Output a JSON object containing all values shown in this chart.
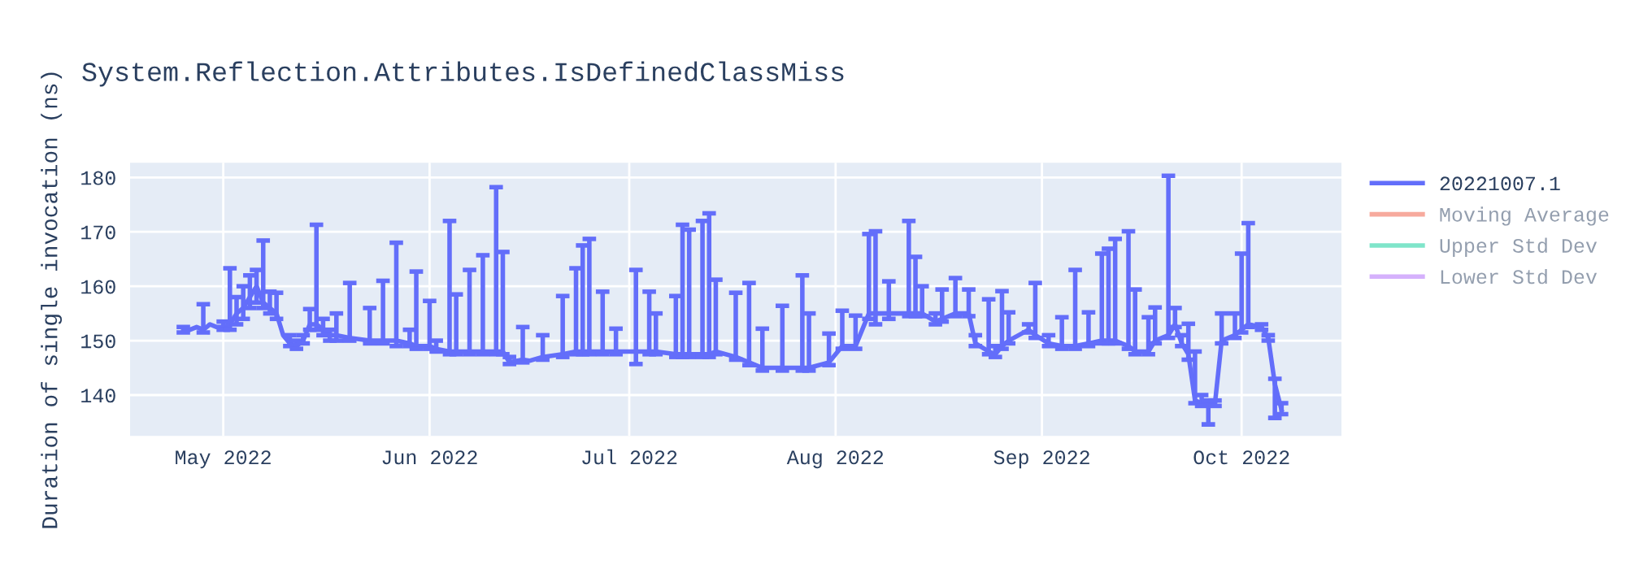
{
  "chart_data": {
    "type": "line",
    "title": "System.Reflection.Attributes.IsDefinedClassMiss",
    "ylabel": "Duration of single invocation (ns)",
    "x": [
      "2022-04-25",
      "2022-04-26",
      "2022-04-27",
      "2022-04-28",
      "2022-04-29",
      "2022-04-30",
      "2022-05-01",
      "2022-05-02",
      "2022-05-03",
      "2022-05-04",
      "2022-05-05",
      "2022-05-06",
      "2022-05-07",
      "2022-05-08",
      "2022-05-09",
      "2022-05-10",
      "2022-05-11",
      "2022-05-12",
      "2022-05-13",
      "2022-05-14",
      "2022-05-15",
      "2022-05-16",
      "2022-05-17",
      "2022-05-18",
      "2022-05-20",
      "2022-05-23",
      "2022-05-25",
      "2022-05-27",
      "2022-05-29",
      "2022-05-30",
      "2022-06-01",
      "2022-06-02",
      "2022-06-04",
      "2022-06-05",
      "2022-06-07",
      "2022-06-09",
      "2022-06-11",
      "2022-06-12",
      "2022-06-13",
      "2022-06-15",
      "2022-06-16",
      "2022-06-18",
      "2022-06-21",
      "2022-06-23",
      "2022-06-24",
      "2022-06-25",
      "2022-06-27",
      "2022-06-29",
      "2022-07-02",
      "2022-07-04",
      "2022-07-05",
      "2022-07-08",
      "2022-07-09",
      "2022-07-10",
      "2022-07-12",
      "2022-07-13",
      "2022-07-14",
      "2022-07-17",
      "2022-07-19",
      "2022-07-21",
      "2022-07-24",
      "2022-07-27",
      "2022-07-28",
      "2022-07-31",
      "2022-08-02",
      "2022-08-04",
      "2022-08-06",
      "2022-08-07",
      "2022-08-09",
      "2022-08-12",
      "2022-08-13",
      "2022-08-14",
      "2022-08-16",
      "2022-08-17",
      "2022-08-19",
      "2022-08-21",
      "2022-08-22",
      "2022-08-24",
      "2022-08-25",
      "2022-08-26",
      "2022-08-27",
      "2022-08-30",
      "2022-08-31",
      "2022-09-02",
      "2022-09-04",
      "2022-09-06",
      "2022-09-08",
      "2022-09-10",
      "2022-09-11",
      "2022-09-12",
      "2022-09-14",
      "2022-09-15",
      "2022-09-17",
      "2022-09-18",
      "2022-09-20",
      "2022-09-21",
      "2022-09-22",
      "2022-09-23",
      "2022-09-24",
      "2022-09-25",
      "2022-09-26",
      "2022-09-27",
      "2022-09-28",
      "2022-09-30",
      "2022-10-01",
      "2022-10-02",
      "2022-10-04",
      "2022-10-05",
      "2022-10-06",
      "2022-10-07"
    ],
    "series": [
      {
        "name": "20221007.1",
        "color": "#636efa",
        "values": [
          152,
          152,
          152.5,
          152,
          153,
          152.5,
          152.5,
          153,
          155,
          156,
          158,
          160,
          157,
          156,
          155,
          151,
          149.5,
          149,
          150,
          153,
          153,
          152,
          151,
          151,
          150.5,
          150,
          150,
          150,
          149.5,
          149,
          149,
          148.5,
          148,
          148,
          148,
          148,
          148,
          148,
          146,
          146.5,
          146.3,
          147,
          147.5,
          148,
          148,
          148,
          148,
          148,
          148,
          148,
          148,
          147.5,
          147.5,
          147.5,
          147.5,
          147.5,
          148,
          147,
          146,
          145,
          145,
          145,
          145,
          146,
          149,
          149,
          155,
          155,
          155,
          155,
          155,
          155,
          153.5,
          154,
          155,
          155,
          149.5,
          148,
          147.5,
          149,
          150,
          152,
          151,
          149.5,
          149,
          149,
          149.5,
          150,
          150,
          150,
          149,
          148,
          148,
          150,
          151,
          153,
          149.5,
          147.5,
          139,
          138.5,
          138.5,
          138.5,
          150,
          151,
          152,
          153,
          152.5,
          150.5,
          142,
          137.3
        ],
        "errors": [
          [
            151.5,
            152.5
          ],
          null,
          null,
          [
            151.5,
            156.7
          ],
          null,
          null,
          [
            152,
            153.5
          ],
          [
            152,
            163.3
          ],
          [
            153,
            158
          ],
          [
            154,
            160
          ],
          [
            156,
            162
          ],
          [
            157,
            163
          ],
          [
            156,
            168.4
          ],
          [
            155,
            159
          ],
          [
            154,
            158.8
          ],
          null,
          [
            149,
            151
          ],
          [
            148.5,
            150
          ],
          [
            149.5,
            151
          ],
          [
            152,
            155.8
          ],
          [
            152,
            171.3
          ],
          [
            151,
            154
          ],
          [
            150,
            152
          ],
          [
            150,
            155
          ],
          [
            150,
            160.6
          ],
          [
            149.5,
            156
          ],
          [
            149.5,
            161
          ],
          [
            149,
            168
          ],
          [
            149,
            152
          ],
          [
            148.5,
            162.7
          ],
          [
            148.5,
            157.3
          ],
          [
            148,
            150
          ],
          [
            147.5,
            172
          ],
          [
            147.5,
            158.5
          ],
          [
            147.5,
            163
          ],
          [
            147.5,
            165.7
          ],
          [
            147.5,
            178.2
          ],
          [
            147.5,
            166.3
          ],
          [
            145.7,
            147
          ],
          [
            146,
            152.5
          ],
          null,
          [
            146.5,
            151
          ],
          [
            147,
            158.2
          ],
          [
            147.5,
            163.3
          ],
          [
            147.5,
            167.5
          ],
          [
            147.5,
            168.7
          ],
          [
            147.5,
            159
          ],
          [
            147.5,
            152.2
          ],
          [
            145.7,
            163
          ],
          [
            147.5,
            159
          ],
          [
            147.5,
            155
          ],
          [
            147,
            158.2
          ],
          [
            147,
            171.3
          ],
          [
            147,
            170.4
          ],
          [
            147,
            172
          ],
          [
            147,
            173.4
          ],
          [
            147.5,
            161.2
          ],
          [
            146.5,
            158.8
          ],
          [
            145.5,
            160.6
          ],
          [
            144.5,
            152.2
          ],
          [
            144.5,
            156.4
          ],
          [
            144.5,
            162
          ],
          [
            144.5,
            155
          ],
          [
            145.5,
            151.3
          ],
          [
            148.5,
            155.5
          ],
          [
            148.5,
            154.6
          ],
          [
            154,
            169.6
          ],
          [
            153,
            170.1
          ],
          [
            154,
            160.9
          ],
          [
            154.5,
            172
          ],
          [
            154.5,
            165.4
          ],
          [
            154.5,
            160
          ],
          [
            153,
            155
          ],
          [
            153.5,
            159.4
          ],
          [
            154.5,
            161.5
          ],
          [
            154.5,
            159.4
          ],
          [
            149,
            151
          ],
          [
            147.5,
            157.6
          ],
          [
            147,
            149
          ],
          [
            148.5,
            159.1
          ],
          [
            149.5,
            155.2
          ],
          [
            151.5,
            153
          ],
          [
            150.5,
            160.6
          ],
          [
            149,
            151
          ],
          [
            148.5,
            154.3
          ],
          [
            148.5,
            163
          ],
          [
            149,
            155.2
          ],
          [
            149.5,
            166
          ],
          [
            149.5,
            166.9
          ],
          [
            149.5,
            168.7
          ],
          [
            148.5,
            170.1
          ],
          [
            147.5,
            159.4
          ],
          [
            147.5,
            154.3
          ],
          [
            149.5,
            156.1
          ],
          [
            150.5,
            180.3
          ],
          [
            152.5,
            156
          ],
          [
            149,
            151
          ],
          [
            146.5,
            153.1
          ],
          [
            138.5,
            148
          ],
          [
            138,
            140
          ],
          [
            134.6,
            139
          ],
          [
            138,
            139
          ],
          [
            149.5,
            155
          ],
          [
            150.5,
            155
          ],
          [
            151.5,
            166
          ],
          [
            152.5,
            171.6
          ],
          [
            152,
            153
          ],
          [
            150,
            151
          ],
          [
            135.8,
            143
          ],
          [
            136.5,
            138.5
          ]
        ]
      },
      {
        "name": "Moving Average",
        "color": "#ef553b",
        "values": [
          null,
          null,
          null,
          null,
          null,
          null,
          null,
          null,
          null,
          null,
          null,
          null,
          null,
          null,
          null,
          null,
          null,
          null,
          null,
          null,
          null,
          null,
          null,
          null,
          null,
          null,
          null,
          null,
          null,
          null,
          null,
          null,
          null,
          null,
          null,
          null,
          null,
          null,
          null,
          null,
          null,
          null,
          null,
          null,
          null,
          null,
          null,
          null,
          null,
          null,
          null,
          null,
          null,
          null,
          null,
          null,
          null,
          null,
          null,
          null,
          null,
          null,
          null,
          null,
          null,
          null,
          null,
          null,
          null,
          null,
          null,
          null,
          null,
          null,
          null,
          null,
          null,
          null,
          null,
          null,
          null,
          null,
          null,
          null,
          null,
          null,
          null,
          null,
          null,
          null,
          null,
          null,
          null,
          null,
          null,
          null,
          null,
          null,
          null,
          null,
          null,
          null,
          null,
          null,
          null,
          null,
          null,
          null,
          null,
          null
        ]
      },
      {
        "name": "Upper Std Dev",
        "color": "#00cc96",
        "values": [
          null,
          null,
          null,
          null,
          null,
          null,
          null,
          null,
          null,
          null,
          null,
          null,
          null,
          null,
          null,
          null,
          null,
          null,
          null,
          null,
          null,
          null,
          null,
          null,
          null,
          null,
          null,
          null,
          null,
          null,
          null,
          null,
          null,
          null,
          null,
          null,
          null,
          null,
          null,
          null,
          null,
          null,
          null,
          null,
          null,
          null,
          null,
          null,
          null,
          null,
          null,
          null,
          null,
          null,
          null,
          null,
          null,
          null,
          null,
          null,
          null,
          null,
          null,
          null,
          null,
          null,
          null,
          null,
          null,
          null,
          null,
          null,
          null,
          null,
          null,
          null,
          null,
          null,
          null,
          null,
          null,
          null,
          null,
          null,
          null,
          null,
          null,
          null,
          null,
          null,
          null,
          null,
          null,
          null,
          null,
          null,
          null,
          null,
          null,
          null,
          null,
          null,
          null,
          null,
          null,
          null,
          null,
          null,
          null,
          null
        ]
      },
      {
        "name": "Lower Std Dev",
        "color": "#ab63fa",
        "values": [
          null,
          null,
          null,
          null,
          null,
          null,
          null,
          null,
          null,
          null,
          null,
          null,
          null,
          null,
          null,
          null,
          null,
          null,
          null,
          null,
          null,
          null,
          null,
          null,
          null,
          null,
          null,
          null,
          null,
          null,
          null,
          null,
          null,
          null,
          null,
          null,
          null,
          null,
          null,
          null,
          null,
          null,
          null,
          null,
          null,
          null,
          null,
          null,
          null,
          null,
          null,
          null,
          null,
          null,
          null,
          null,
          null,
          null,
          null,
          null,
          null,
          null,
          null,
          null,
          null,
          null,
          null,
          null,
          null,
          null,
          null,
          null,
          null,
          null,
          null,
          null,
          null,
          null,
          null,
          null,
          null,
          null,
          null,
          null,
          null,
          null,
          null,
          null,
          null,
          null,
          null,
          null,
          null,
          null,
          null,
          null,
          null,
          null,
          null,
          null,
          null,
          null,
          null,
          null,
          null,
          null,
          null,
          null,
          null,
          null
        ]
      }
    ],
    "xlim": [
      "2022-04-17",
      "2022-10-16"
    ],
    "xticks": [
      {
        "value": "2022-05-01",
        "label": "May 2022"
      },
      {
        "value": "2022-06-01",
        "label": "Jun 2022"
      },
      {
        "value": "2022-07-01",
        "label": "Jul 2022"
      },
      {
        "value": "2022-08-01",
        "label": "Aug 2022"
      },
      {
        "value": "2022-09-01",
        "label": "Sep 2022"
      },
      {
        "value": "2022-10-01",
        "label": "Oct 2022"
      }
    ],
    "ylim": [
      132.5,
      182.7
    ],
    "yticks": [
      140,
      150,
      160,
      170,
      180
    ],
    "grid": true,
    "legend": "right",
    "marker": "none",
    "line_style": "solid"
  }
}
